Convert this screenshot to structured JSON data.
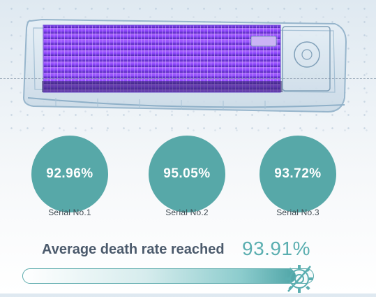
{
  "results": [
    {
      "rate": "92.96%",
      "label": "Serial No.1"
    },
    {
      "rate": "95.05%",
      "label": "Serial No.2"
    },
    {
      "rate": "93.72%",
      "label": "Serial No.3"
    }
  ],
  "summary": {
    "label": "Average death rate reached",
    "value": "93.91%",
    "progress_fraction": 0.9391
  },
  "colors": {
    "accent": "#57a8a8",
    "heading": "#4b5a6c",
    "uv_light": "#8a3dff"
  },
  "icons": [
    "air-conditioner-unit",
    "virus-gear-icon"
  ]
}
